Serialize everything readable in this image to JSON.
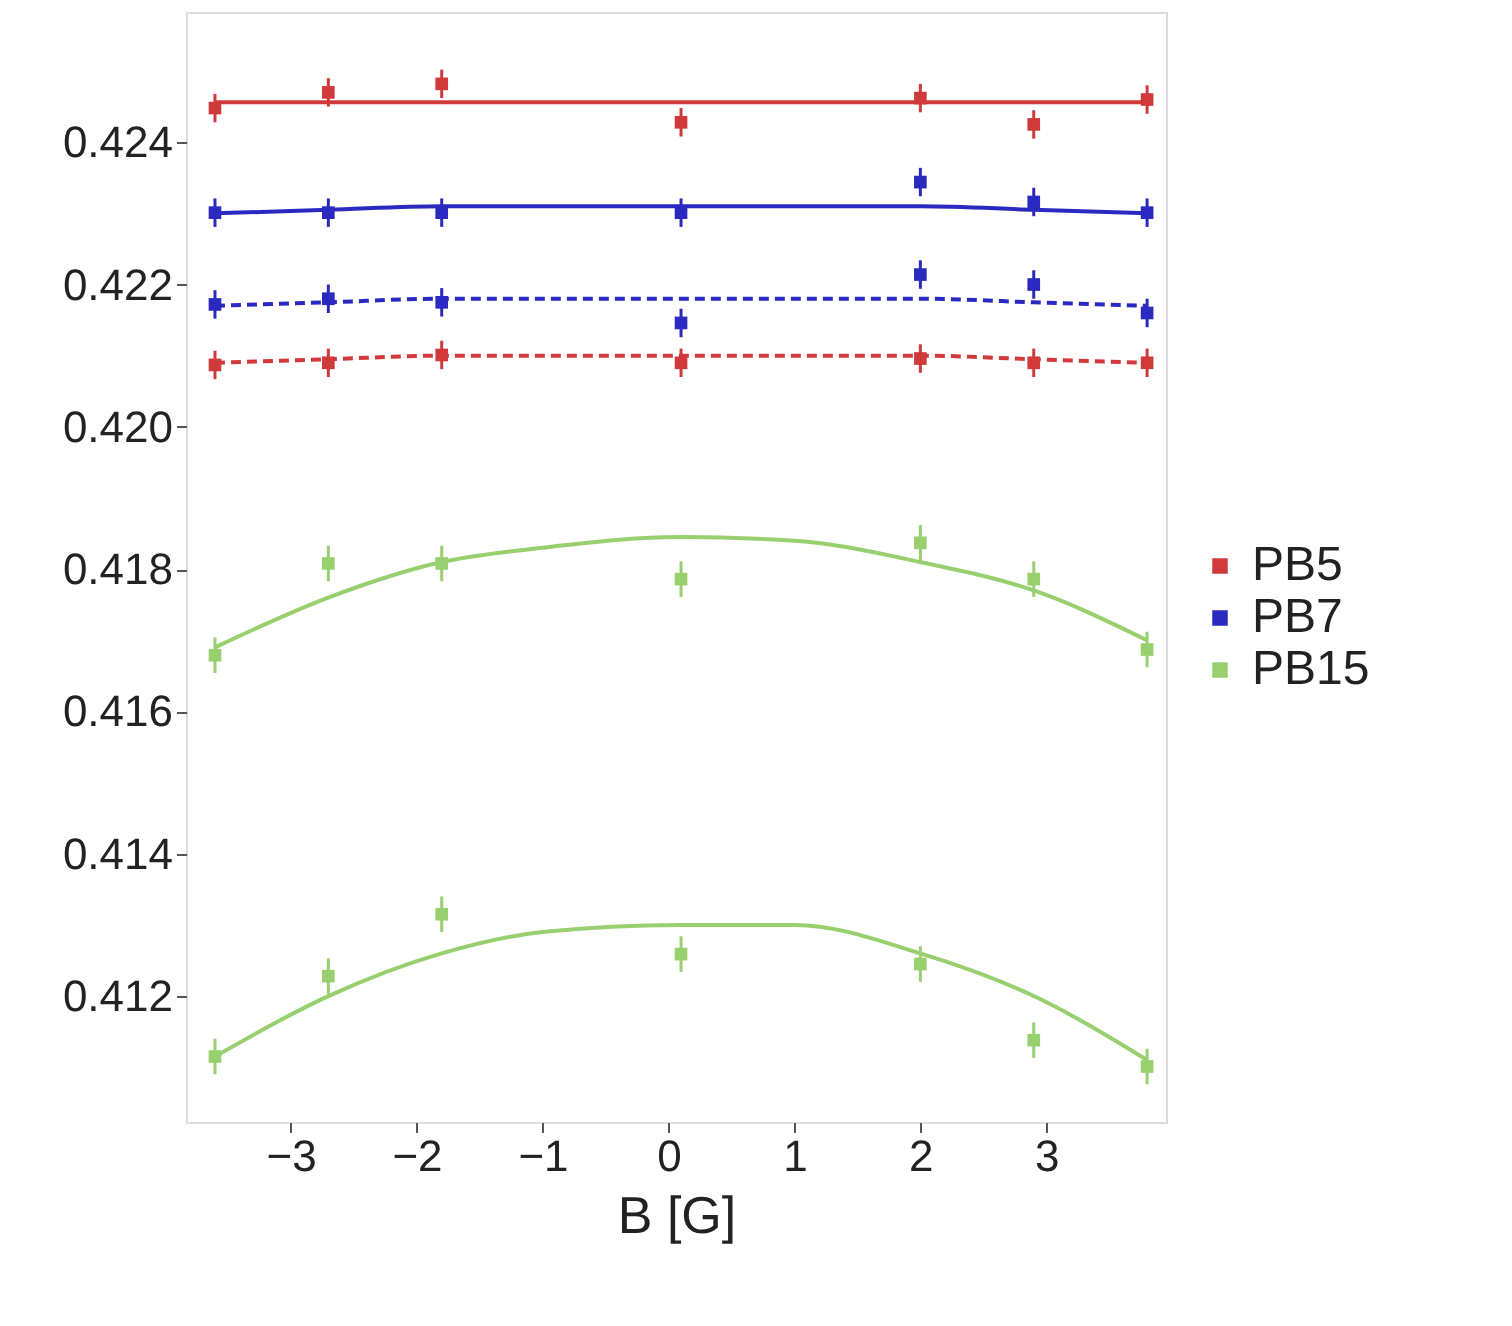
{
  "chart_data": {
    "type": "scatter",
    "xlabel": "B [G]",
    "xlim": [
      -3.83,
      3.95
    ],
    "xticks": [
      -3,
      -2,
      -1,
      0,
      1,
      2,
      3
    ],
    "ylim": [
      0.41023,
      0.42583
    ],
    "yticks": [
      0.412,
      0.414,
      0.416,
      0.418,
      {
        "value": 0.42,
        "label": "0.420"
      },
      0.422,
      0.424
    ],
    "grid": false,
    "legend": "right",
    "marker": "square",
    "x": [
      -3.6,
      -2.7,
      -1.8,
      0.1,
      2.0,
      2.9,
      3.8
    ],
    "series": [
      {
        "name": "PB5",
        "color": "#d03a3a",
        "values": [
          0.42448,
          0.4247,
          0.42482,
          0.42428,
          0.42462,
          0.42425,
          0.4246
        ],
        "errors": [
          0.0002,
          0.0002,
          0.0002,
          0.0002,
          0.0002,
          0.0002,
          0.0002
        ]
      },
      {
        "color": "#d03a3a",
        "values": [
          0.42087,
          0.4209,
          0.42101,
          0.4209,
          0.42096,
          0.4209,
          0.4209
        ],
        "errors": [
          0.0002,
          0.0002,
          0.0002,
          0.0002,
          0.0002,
          0.0002,
          0.0002
        ]
      },
      {
        "name": "PB7",
        "color": "#2a2ac0",
        "values": [
          0.42301,
          0.42301,
          0.42301,
          0.42301,
          0.42344,
          0.42316,
          0.42301
        ],
        "errors": [
          0.0002,
          0.0002,
          0.0002,
          0.0002,
          0.0002,
          0.0002,
          0.0002
        ]
      },
      {
        "color": "#2a2ac0",
        "values": [
          0.42172,
          0.4218,
          0.42175,
          0.42146,
          0.42214,
          0.422,
          0.4216
        ],
        "errors": [
          0.0002,
          0.0002,
          0.0002,
          0.0002,
          0.0002,
          0.0002,
          0.0002
        ]
      },
      {
        "name": "PB15",
        "color": "#98d070",
        "values": [
          0.41679,
          0.41808,
          0.41808,
          0.41786,
          0.41837,
          0.41786,
          0.41687
        ],
        "errors": [
          0.00025,
          0.00025,
          0.00025,
          0.00025,
          0.00025,
          0.00025,
          0.00025
        ]
      },
      {
        "color": "#98d070",
        "values": [
          0.41115,
          0.41228,
          0.41315,
          0.41259,
          0.41245,
          0.41138,
          0.41101
        ],
        "errors": [
          0.00025,
          0.00025,
          0.00025,
          0.00025,
          0.00025,
          0.00025,
          0.00025
        ]
      },
      {
        "type": "line",
        "marker": "none",
        "line_style": "solid",
        "color": "#d03a3a",
        "x": [
          -3.6,
          -2.7,
          -1.8,
          -1,
          0.1,
          1,
          2,
          2.9,
          3.8
        ],
        "values": [
          0.42456,
          0.42456,
          0.42456,
          0.42456,
          0.42456,
          0.42456,
          0.42456,
          0.42456,
          0.42456
        ]
      },
      {
        "type": "line",
        "marker": "none",
        "line_style": "dashed",
        "color": "#d03a3a",
        "x": [
          -3.6,
          -2.7,
          -1.8,
          -1,
          0.1,
          1,
          2,
          2.9,
          3.8
        ],
        "values": [
          0.4209,
          0.42095,
          0.421,
          0.421,
          0.421,
          0.421,
          0.421,
          0.42095,
          0.4209
        ]
      },
      {
        "type": "line",
        "marker": "none",
        "line_style": "solid",
        "color": "#2a2ac0",
        "x": [
          -3.6,
          -2.7,
          -1.8,
          -1,
          0.1,
          1,
          2,
          2.9,
          3.8
        ],
        "values": [
          0.423,
          0.42305,
          0.4231,
          0.4231,
          0.4231,
          0.4231,
          0.4231,
          0.42305,
          0.423
        ]
      },
      {
        "type": "line",
        "marker": "none",
        "line_style": "dashed",
        "color": "#2a2ac0",
        "x": [
          -3.6,
          -2.7,
          -1.8,
          -1,
          0.1,
          1,
          2,
          2.9,
          3.8
        ],
        "values": [
          0.4217,
          0.42175,
          0.4218,
          0.4218,
          0.4218,
          0.4218,
          0.4218,
          0.42175,
          0.4217
        ]
      },
      {
        "type": "line",
        "marker": "none",
        "line_style": "solid",
        "color": "#98d070",
        "x": [
          -3.6,
          -2.7,
          -1.8,
          -1,
          0.1,
          1,
          2,
          2.9,
          3.8
        ],
        "values": [
          0.4169,
          0.4176,
          0.4181,
          0.4183,
          0.41845,
          0.4184,
          0.4181,
          0.4177,
          0.417
        ]
      },
      {
        "type": "line",
        "marker": "none",
        "line_style": "solid",
        "color": "#98d070",
        "x": [
          -3.6,
          -2.7,
          -1.8,
          -1,
          0.1,
          1,
          2,
          2.9,
          3.8
        ],
        "values": [
          0.41115,
          0.412,
          0.4126,
          0.4129,
          0.413,
          0.413,
          0.4126,
          0.412,
          0.4111
        ]
      }
    ]
  }
}
